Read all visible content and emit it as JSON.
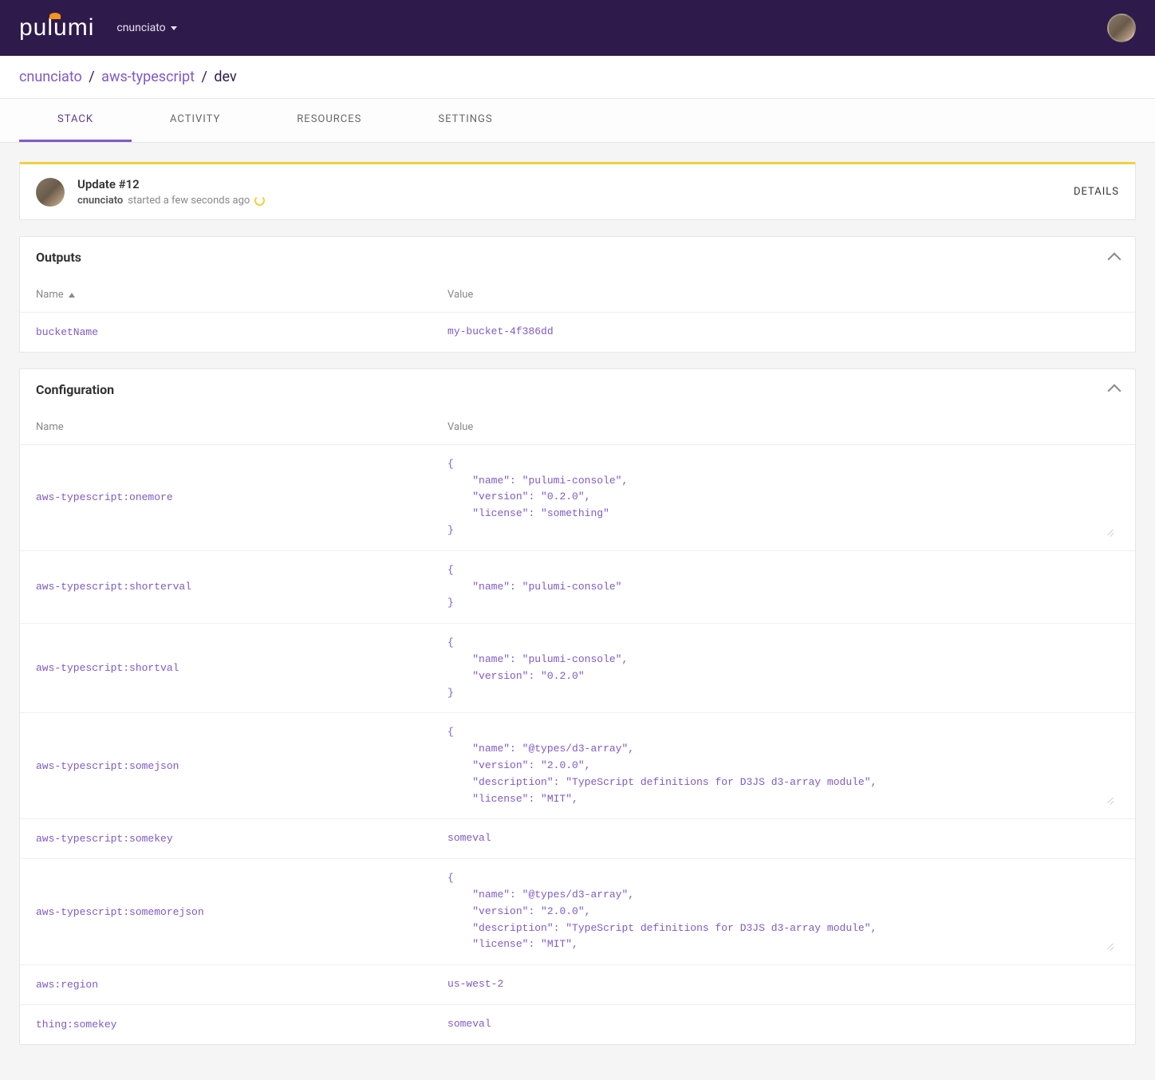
{
  "header": {
    "logo_text": "pulumi",
    "username": "cnunciato"
  },
  "breadcrumb": {
    "org": "cnunciato",
    "project": "aws-typescript",
    "stack": "dev"
  },
  "tabs": [
    {
      "label": "STACK",
      "active": true
    },
    {
      "label": "ACTIVITY",
      "active": false
    },
    {
      "label": "RESOURCES",
      "active": false
    },
    {
      "label": "SETTINGS",
      "active": false
    }
  ],
  "update": {
    "title": "Update #12",
    "user": "cnunciato",
    "status_text": "started a few seconds ago",
    "details_label": "DETAILS"
  },
  "outputs": {
    "title": "Outputs",
    "name_header": "Name",
    "value_header": "Value",
    "rows": [
      {
        "name": "bucketName",
        "value": "my-bucket-4f386dd"
      }
    ]
  },
  "configuration": {
    "title": "Configuration",
    "name_header": "Name",
    "value_header": "Value",
    "rows": [
      {
        "name": "aws-typescript:onemore",
        "value": "{\n    \"name\": \"pulumi-console\",\n    \"version\": \"0.2.0\",\n    \"license\": \"something\"\n}",
        "resizable": true
      },
      {
        "name": "aws-typescript:shorterval",
        "value": "{\n    \"name\": \"pulumi-console\"\n}",
        "resizable": false
      },
      {
        "name": "aws-typescript:shortval",
        "value": "{\n    \"name\": \"pulumi-console\",\n    \"version\": \"0.2.0\"\n}",
        "resizable": false
      },
      {
        "name": "aws-typescript:somejson",
        "value": "{\n    \"name\": \"@types/d3-array\",\n    \"version\": \"2.0.0\",\n    \"description\": \"TypeScript definitions for D3JS d3-array module\",\n    \"license\": \"MIT\",",
        "resizable": true
      },
      {
        "name": "aws-typescript:somekey",
        "value": "someval",
        "resizable": false
      },
      {
        "name": "aws-typescript:somemorejson",
        "value": "{\n    \"name\": \"@types/d3-array\",\n    \"version\": \"2.0.0\",\n    \"description\": \"TypeScript definitions for D3JS d3-array module\",\n    \"license\": \"MIT\",",
        "resizable": true
      },
      {
        "name": "aws:region",
        "value": "us-west-2",
        "resizable": false
      },
      {
        "name": "thing:somekey",
        "value": "someval",
        "resizable": false
      }
    ]
  }
}
